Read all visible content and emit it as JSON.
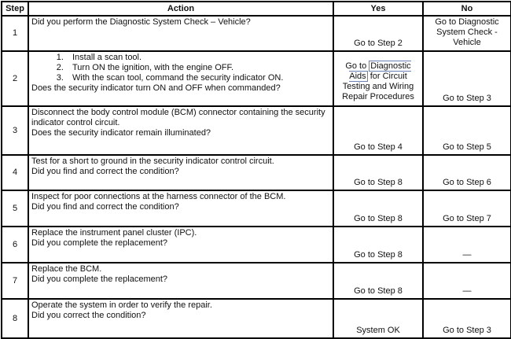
{
  "headers": {
    "step": "Step",
    "action": "Action",
    "yes": "Yes",
    "no": "No"
  },
  "rows": [
    {
      "step": "1",
      "action": "Did you perform the Diagnostic System Check – Vehicle?",
      "question": "",
      "yes": "Go to Step 2",
      "no": "Go to Diagnostic System Check - Vehicle"
    },
    {
      "step": "2",
      "steps": [
        "Install a scan tool.",
        "Turn ON the ignition, with the engine OFF.",
        "With the scan tool, command the security indicator ON."
      ],
      "question": "Does the security indicator turn ON and OFF when commanded?",
      "yes_prefix": "Go to",
      "yes_link": "Diagnostic Aids",
      "yes_suffix": "for Circuit Testing and Wiring Repair Procedures",
      "no": "Go to Step 3"
    },
    {
      "step": "3",
      "action": "Disconnect the body control module (BCM) connector containing the security indicator control circuit.",
      "question": "Does the security indicator remain illuminated?",
      "yes": "Go to Step 4",
      "no": "Go to Step 5"
    },
    {
      "step": "4",
      "action": "Test for a short to ground in the security indicator control circuit.",
      "question": "Did you find and correct the condition?",
      "yes": "Go to Step 8",
      "no": "Go to Step 6"
    },
    {
      "step": "5",
      "action": "Inspect for poor connections at the harness connector of the BCM.",
      "question": "Did you find and correct the condition?",
      "yes": "Go to Step 8",
      "no": "Go to Step 7"
    },
    {
      "step": "6",
      "action": "Replace the instrument panel cluster (IPC).",
      "question": "Did you complete the replacement?",
      "yes": "Go to Step 8",
      "no": "—"
    },
    {
      "step": "7",
      "action": "Replace the BCM.",
      "question": "Did you complete the replacement?",
      "yes": "Go to Step 8",
      "no": "—"
    },
    {
      "step": "8",
      "action": "Operate the system in order to verify the repair.",
      "question": "Did you correct the condition?",
      "yes": "System OK",
      "no": "Go to Step 3"
    }
  ]
}
